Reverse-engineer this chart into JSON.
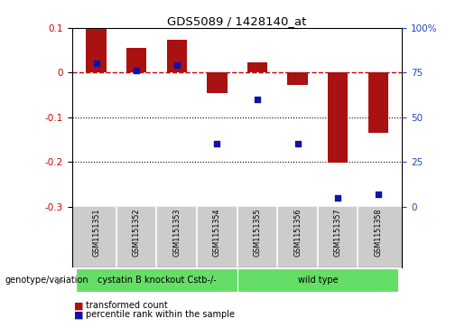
{
  "title": "GDS5089 / 1428140_at",
  "samples": [
    "GSM1151351",
    "GSM1151352",
    "GSM1151353",
    "GSM1151354",
    "GSM1151355",
    "GSM1151356",
    "GSM1151357",
    "GSM1151358"
  ],
  "red_values": [
    0.097,
    0.055,
    0.073,
    -0.045,
    0.022,
    -0.027,
    -0.202,
    -0.135
  ],
  "blue_values_pct": [
    80,
    76,
    79,
    35,
    60,
    35,
    5,
    7
  ],
  "ylim_left": [
    -0.3,
    0.1
  ],
  "ylim_right": [
    0,
    100
  ],
  "yticks_left": [
    -0.3,
    -0.2,
    -0.1,
    0.0,
    0.1
  ],
  "yticks_right": [
    0,
    25,
    50,
    75,
    100
  ],
  "group1_label": "cystatin B knockout Cstb-/-",
  "group2_label": "wild type",
  "group1_indices": [
    0,
    1,
    2,
    3
  ],
  "group2_indices": [
    4,
    5,
    6,
    7
  ],
  "group1_color": "#66dd66",
  "group2_color": "#66dd66",
  "bar_color": "#aa1111",
  "dot_color": "#1111aa",
  "legend_red_label": "transformed count",
  "legend_blue_label": "percentile rank within the sample",
  "genotype_label": "genotype/variation",
  "background_color": "#ffffff",
  "label_bg_color": "#cccccc",
  "grid_color": "#000000",
  "dashed_line_color": "#cc0000",
  "bar_width": 0.5,
  "dot_size": 22
}
